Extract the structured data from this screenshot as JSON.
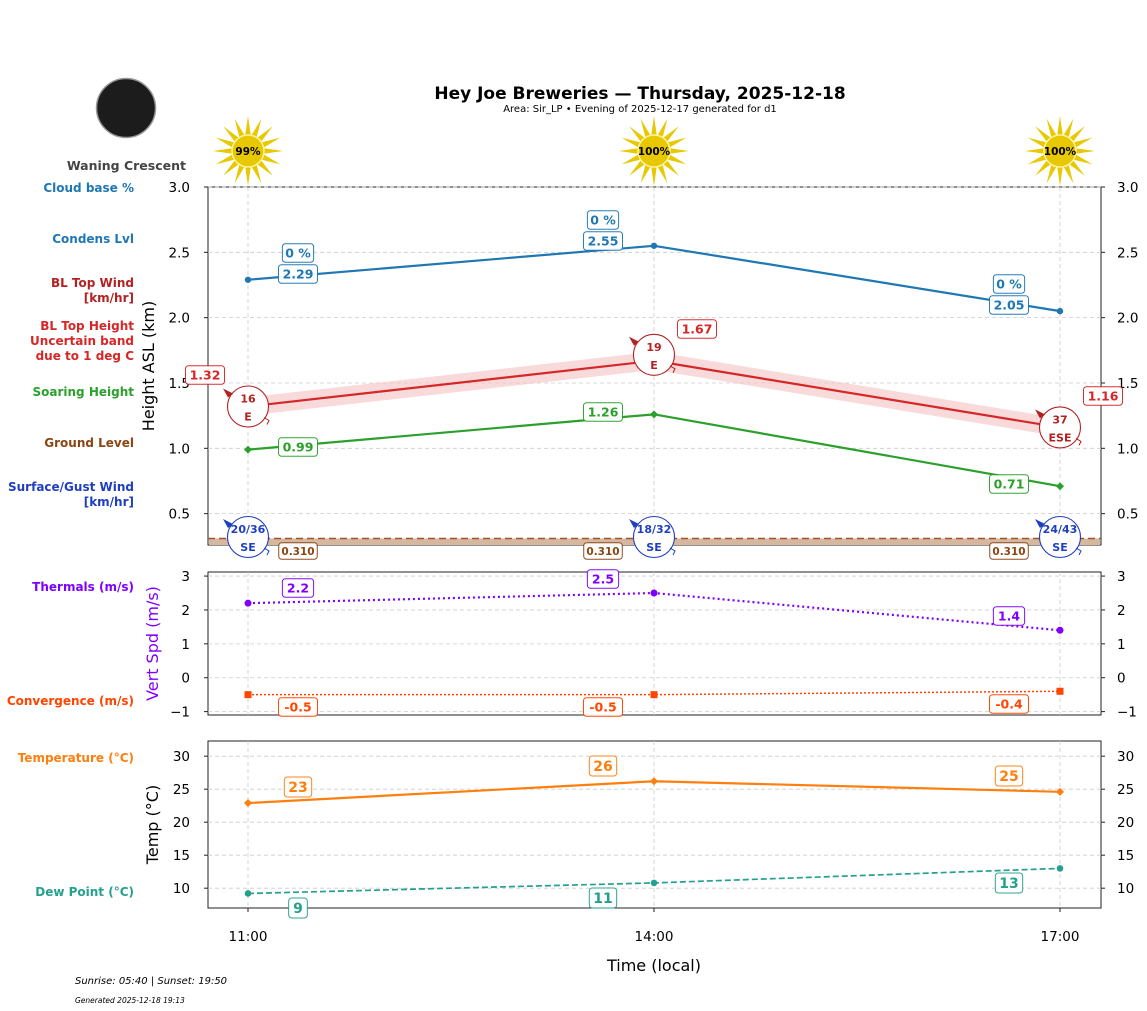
{
  "title": "Hey Joe Breweries — Thursday, 2025-12-18",
  "subtitle": "Area: Sir_LP • Evening of 2025-12-17 generated for d1",
  "moon_phase": "Waning Crescent",
  "footer": {
    "sun": "Sunrise: 05:40 | Sunset: 19:50",
    "generated": "Generated 2025-12-18 19:13"
  },
  "side_labels": [
    {
      "text": "Cloud base %",
      "color": "#1f77b4"
    },
    {
      "text": "Condens Lvl",
      "color": "#1f77b4"
    },
    {
      "text": "BL Top Wind\n[km/hr]",
      "color": "#b22222"
    },
    {
      "text": "BL Top Height\nUncertain band\ndue to 1 deg C",
      "color": "#d62728"
    },
    {
      "text": "Soaring Height",
      "color": "#2ca02c"
    },
    {
      "text": "Ground Level",
      "color": "#8b4513"
    },
    {
      "text": "Surface/Gust Wind\n[km/hr]",
      "color": "#1f3fbf"
    },
    {
      "text": "Thermals (m/s)",
      "color": "#8000ff"
    },
    {
      "text": "Convergence (m/s)",
      "color": "#ff4500"
    },
    {
      "text": "Temperature (°C)",
      "color": "#ff7f0e"
    },
    {
      "text": "Dew Point (°C)",
      "color": "#26a08e"
    }
  ],
  "chart_data": [
    {
      "type": "line",
      "ylabel": "Height ASL (km)",
      "x": [
        "11:00",
        "14:00",
        "17:00"
      ],
      "ylim": [
        0.26,
        3.0
      ],
      "yticks": [
        "0.5",
        "1.0",
        "1.5",
        "2.0",
        "2.5",
        "3.0"
      ],
      "grid": true,
      "sun_percent": [
        "99%",
        "100%",
        "100%"
      ],
      "series": [
        {
          "key": "condens",
          "values": [
            2.29,
            2.55,
            2.05
          ],
          "labels": [
            "2.29",
            "2.55",
            "2.05"
          ],
          "color": "#1f77b4"
        },
        {
          "key": "cloud_base_pct",
          "labels": [
            "0 %",
            "0 %",
            "0 %"
          ],
          "color": "#1f77b4"
        },
        {
          "key": "bl_top",
          "values": [
            1.32,
            1.67,
            1.16
          ],
          "labels": [
            "1.32",
            "1.67",
            "1.16"
          ],
          "band": 0.07,
          "color": "#d62728"
        },
        {
          "key": "soaring",
          "values": [
            0.99,
            1.26,
            0.71
          ],
          "labels": [
            "0.99",
            "1.26",
            "0.71"
          ],
          "color": "#2ca02c"
        },
        {
          "key": "ground",
          "values": [
            0.31,
            0.31,
            0.31
          ],
          "labels": [
            "0.310",
            "0.310",
            "0.310"
          ],
          "color": "#a0522d"
        }
      ],
      "bl_wind": [
        {
          "speed": "16",
          "dir": "E"
        },
        {
          "speed": "19",
          "dir": "E"
        },
        {
          "speed": "37",
          "dir": "ESE"
        }
      ],
      "surface_wind": [
        {
          "speed": "20/36",
          "dir": "SE"
        },
        {
          "speed": "18/32",
          "dir": "SE"
        },
        {
          "speed": "24/43",
          "dir": "SE"
        }
      ]
    },
    {
      "type": "line",
      "ylabel": "Vert Spd (m/s)",
      "x": [
        "11:00",
        "14:00",
        "17:00"
      ],
      "ylim": [
        -1.1,
        3.12
      ],
      "yticks": [
        "−1",
        "0",
        "1",
        "2",
        "3"
      ],
      "grid": true,
      "series": [
        {
          "key": "thermals",
          "values": [
            2.2,
            2.5,
            1.4
          ],
          "labels": [
            "2.2",
            "2.5",
            "1.4"
          ],
          "color": "#8000ff"
        },
        {
          "key": "convergence",
          "values": [
            -0.5,
            -0.5,
            -0.4
          ],
          "labels": [
            "-0.5",
            "-0.5",
            "-0.4"
          ],
          "color": "#ff4500"
        }
      ]
    },
    {
      "type": "line",
      "ylabel": "Temp (°C)",
      "xlabel": "Time (local)",
      "x": [
        "11:00",
        "14:00",
        "17:00"
      ],
      "ylim": [
        7.0,
        32.3
      ],
      "yticks": [
        "10",
        "15",
        "20",
        "25",
        "30"
      ],
      "grid": true,
      "series": [
        {
          "key": "temperature",
          "values": [
            22.9,
            26.2,
            24.6
          ],
          "labels": [
            "23",
            "26",
            "25"
          ],
          "color": "#ff7f0e"
        },
        {
          "key": "dewpoint",
          "values": [
            9.2,
            10.8,
            13.0
          ],
          "labels": [
            "9",
            "11",
            "13"
          ],
          "color": "#26a08e"
        }
      ]
    }
  ]
}
